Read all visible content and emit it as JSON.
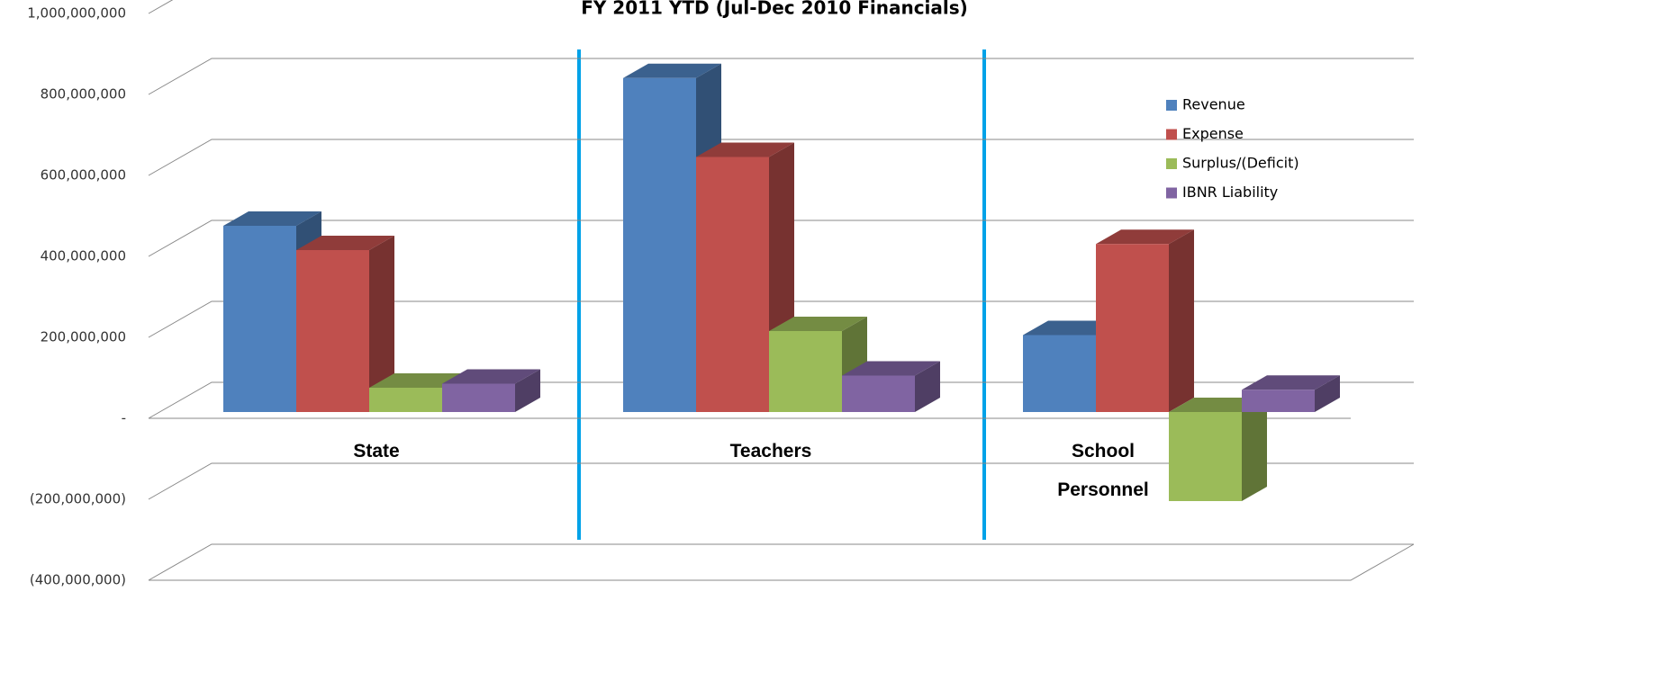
{
  "chart_data": {
    "type": "bar3d",
    "title": "FY 2011 YTD (Jul-Dec 2010 Financials)",
    "categories": [
      "State",
      "Teachers",
      "School Personnel"
    ],
    "series": [
      {
        "name": "Revenue",
        "color": "#4f81bd",
        "values": [
          460000000,
          825000000,
          190000000
        ]
      },
      {
        "name": "Expense",
        "color": "#c0504d",
        "values": [
          400000000,
          630000000,
          415000000
        ]
      },
      {
        "name": "Surplus/(Deficit)",
        "color": "#9bbb59",
        "values": [
          60000000,
          200000000,
          -220000000
        ]
      },
      {
        "name": "IBNR Liability",
        "color": "#8064a2",
        "values": [
          70000000,
          90000000,
          55000000
        ]
      }
    ],
    "ylim": [
      -400000000,
      1000000000
    ],
    "yticks": [
      {
        "value": -400000000,
        "label": "(400,000,000)"
      },
      {
        "value": -200000000,
        "label": "(200,000,000)"
      },
      {
        "value": 0,
        "label": "-"
      },
      {
        "value": 200000000,
        "label": "200,000,000"
      },
      {
        "value": 400000000,
        "label": "400,000,000"
      },
      {
        "value": 600000000,
        "label": "600,000,000"
      },
      {
        "value": 800000000,
        "label": "800,000,000"
      },
      {
        "value": 1000000000,
        "label": "1,000,000,000"
      }
    ],
    "grid": true,
    "legend": "upper right"
  }
}
